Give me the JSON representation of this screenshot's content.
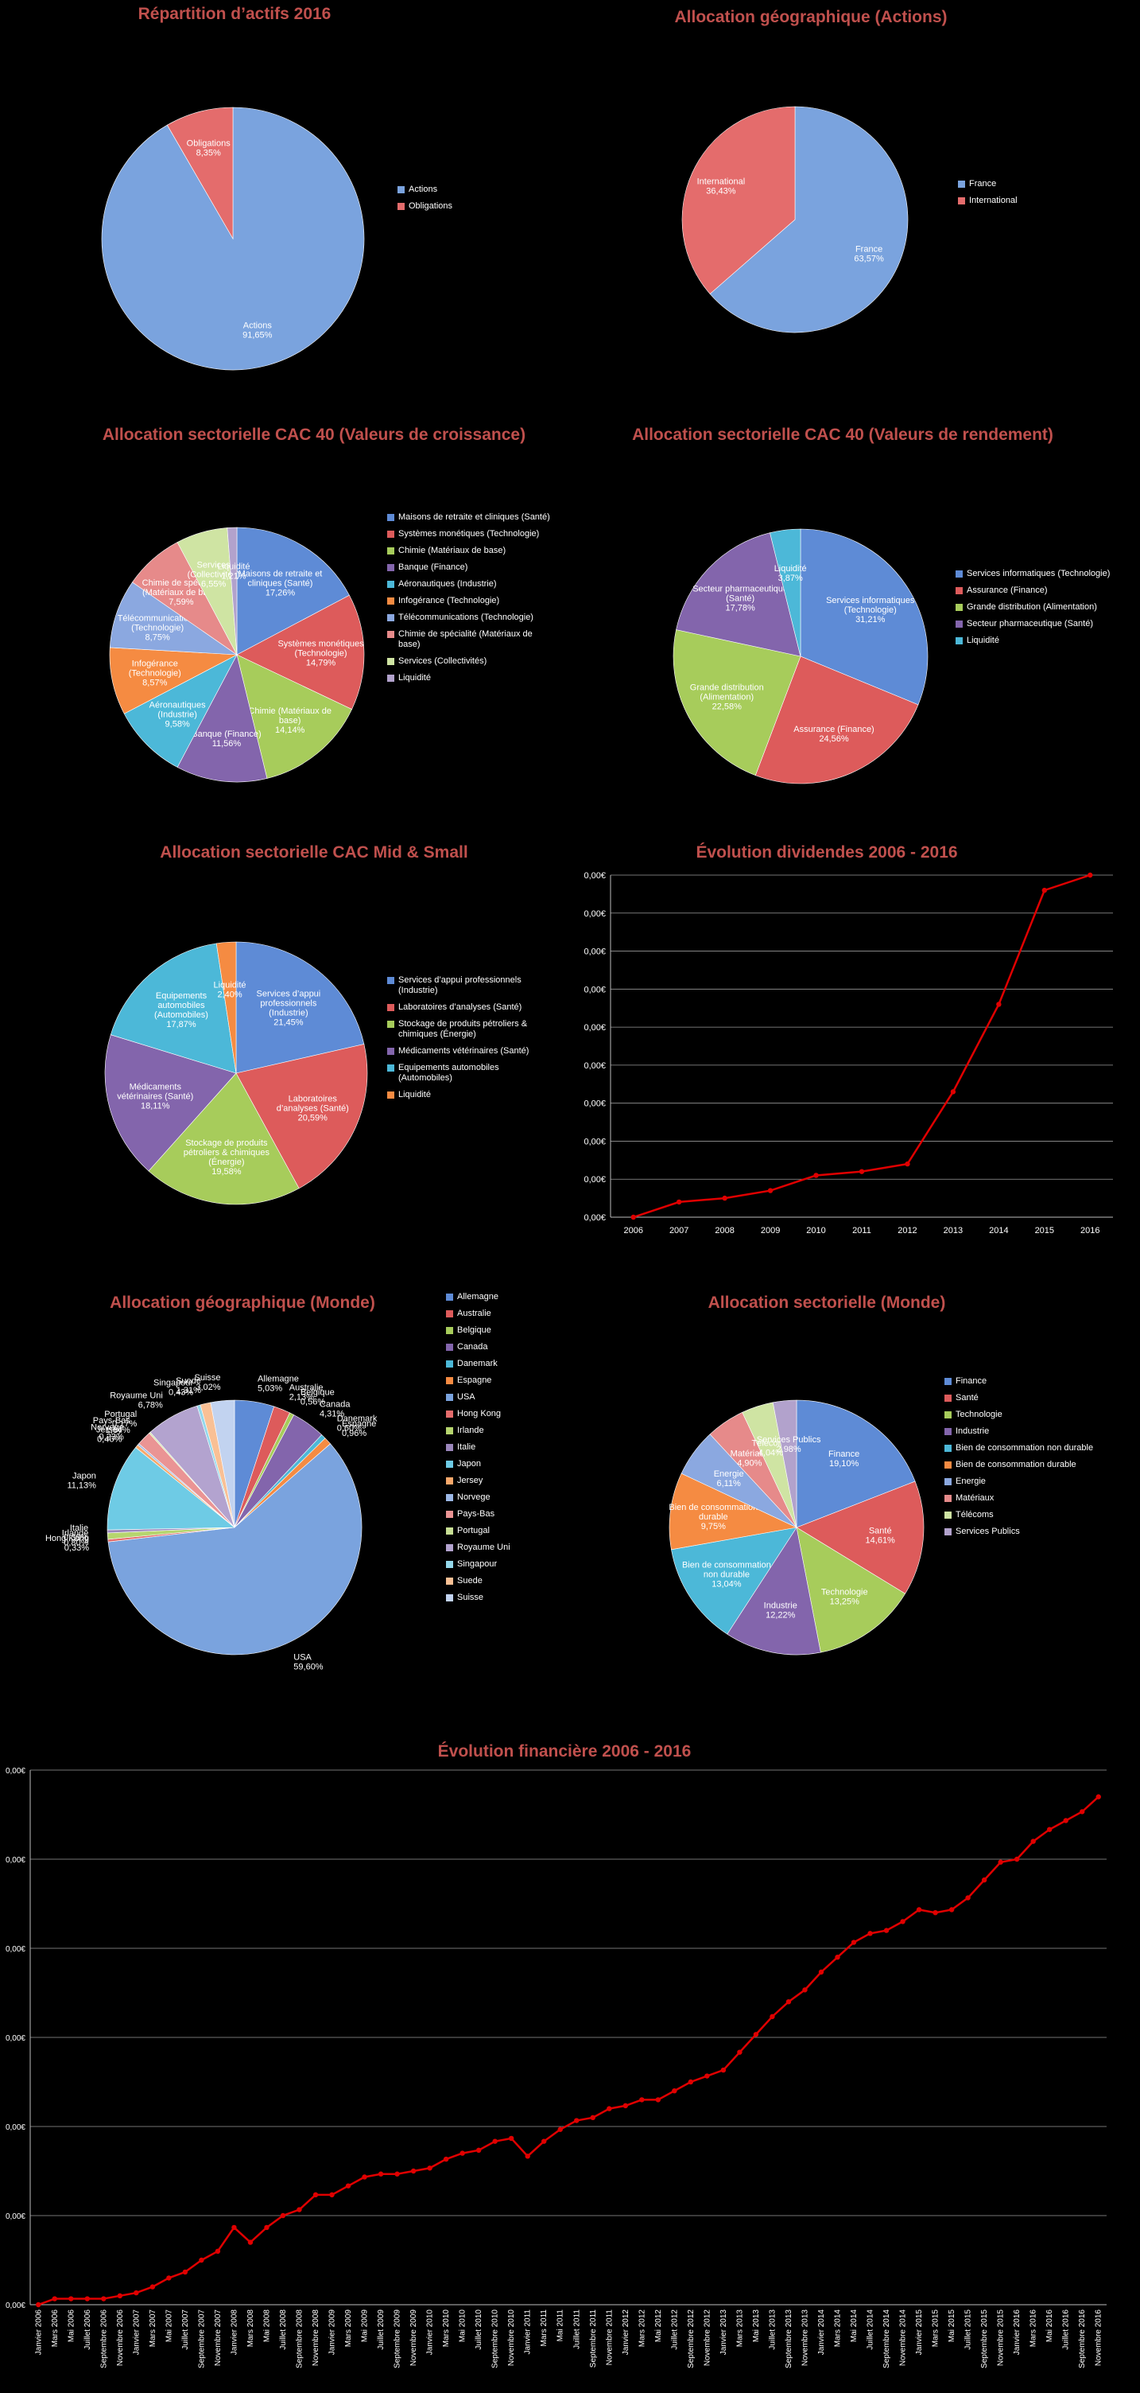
{
  "colors": {
    "title": "#c0504d",
    "blue": "#7aa3de",
    "red": "#e46c6c",
    "green": "#b6d56e",
    "purple": "#8f74b3",
    "cyan": "#5bc0de",
    "orange": "#f79646",
    "line": "#e00000"
  },
  "chart_data": [
    {
      "type": "pie",
      "title": "Répartition d’actifs 2016",
      "slices": [
        {
          "label": "Actions",
          "value": 91.65,
          "text": "91,65%",
          "color": "#7aa3de"
        },
        {
          "label": "Obligations",
          "value": 8.35,
          "text": "8,35%",
          "color": "#e46c6c"
        }
      ],
      "legend": [
        "Actions",
        "Obligations"
      ]
    },
    {
      "type": "pie",
      "title": "Allocation géographique (Actions)",
      "slices": [
        {
          "label": "France",
          "value": 63.57,
          "text": "63,57%",
          "color": "#7aa3de"
        },
        {
          "label": "International",
          "value": 36.43,
          "text": "36,43%",
          "color": "#e46c6c"
        }
      ],
      "legend": [
        "France",
        "International"
      ]
    },
    {
      "type": "pie",
      "title": "Allocation sectorielle CAC 40 (Valeurs de croissance)",
      "slices": [
        {
          "label": "Maisons de retraite et cliniques (Santé)",
          "value": 17.26,
          "text": "17,26%",
          "color": "#5e8bd6"
        },
        {
          "label": "Systèmes monétiques (Technologie)",
          "value": 14.79,
          "text": "14,79%",
          "color": "#dd5b5b"
        },
        {
          "label": "Chimie (Matériaux de base)",
          "value": 14.14,
          "text": "14,14%",
          "color": "#a7cc5b"
        },
        {
          "label": "Banque (Finance)",
          "value": 11.56,
          "text": "11,56%",
          "color": "#8365ac"
        },
        {
          "label": "Aéronautiques (Industrie)",
          "value": 9.58,
          "text": "9,58%",
          "color": "#4cb8d8"
        },
        {
          "label": "Infogérance (Technologie)",
          "value": 8.57,
          "text": "8,57%",
          "color": "#f58b42"
        },
        {
          "label": "Télécommunications (Technologie)",
          "value": 8.75,
          "text": "8,75%",
          "color": "#8ba8e0"
        },
        {
          "label": "Chimie de spécialité (Matériaux de base)",
          "value": 7.59,
          "text": "7,59%",
          "color": "#e68a8a"
        },
        {
          "label": "Services (Collectivités)",
          "value": 6.55,
          "text": "6,55%",
          "color": "#cfe4a3"
        },
        {
          "label": "Liquidité",
          "value": 1.21,
          "text": "1,21%",
          "color": "#b2a2cc"
        }
      ],
      "legend": [
        "Maisons de retraite et cliniques (Santé)",
        "Systèmes monétiques (Technologie)",
        "Chimie (Matériaux de base)",
        "Banque (Finance)",
        "Aéronautiques (Industrie)",
        "Infogérance (Technologie)",
        "Télécommunications (Technologie)",
        "Chimie de spécialité (Matériaux de base)",
        "Services (Collectivités)",
        "Liquidité"
      ]
    },
    {
      "type": "pie",
      "title": "Allocation sectorielle CAC 40 (Valeurs de rendement)",
      "slices": [
        {
          "label": "Services informatiques (Technologie)",
          "value": 31.21,
          "text": "31,21%",
          "color": "#5e8bd6"
        },
        {
          "label": "Assurance (Finance)",
          "value": 24.56,
          "text": "24,56%",
          "color": "#dd5b5b"
        },
        {
          "label": "Grande distribution (Alimentation)",
          "value": 22.58,
          "text": "22,58%",
          "color": "#a7cc5b"
        },
        {
          "label": "Secteur pharmaceutique (Santé)",
          "value": 17.78,
          "text": "17,78%",
          "color": "#8365ac"
        },
        {
          "label": "Liquidité",
          "value": 3.87,
          "text": "3,87%",
          "color": "#4cb8d8"
        }
      ],
      "legend": [
        "Services informatiques (Technologie)",
        "Assurance (Finance)",
        "Grande distribution (Alimentation)",
        "Secteur pharmaceutique (Santé)",
        "Liquidité"
      ]
    },
    {
      "type": "pie",
      "title": "Allocation sectorielle CAC Mid & Small",
      "slices": [
        {
          "label": "Services d’appui professionnels (Industrie)",
          "value": 21.45,
          "text": "21,45%",
          "color": "#5e8bd6"
        },
        {
          "label": "Laboratoires d’analyses (Santé)",
          "value": 20.59,
          "text": "20,59%",
          "color": "#dd5b5b"
        },
        {
          "label": "Stockage de produits pétroliers & chimiques (Énergie)",
          "value": 19.58,
          "text": "19,58%",
          "color": "#a7cc5b"
        },
        {
          "label": "Médicaments vétérinaires (Santé)",
          "value": 18.11,
          "text": "18,11%",
          "color": "#8365ac"
        },
        {
          "label": "Equipements automobiles (Automobiles)",
          "value": 17.87,
          "text": "17,87%",
          "color": "#4cb8d8"
        },
        {
          "label": "Liquidité",
          "value": 2.4,
          "text": "2,40%",
          "color": "#f58b42"
        }
      ],
      "legend": [
        "Services d’appui professionnels (Industrie)",
        "Laboratoires d’analyses (Santé)",
        "Stockage de produits pétroliers & chimiques (Énergie)",
        "Médicaments vétérinaires (Santé)",
        "Equipements automobiles (Automobiles)",
        "Liquidité"
      ]
    },
    {
      "type": "line",
      "title": "Évolution dividendes 2006 - 2016",
      "x": [
        "2006",
        "2007",
        "2008",
        "2009",
        "2010",
        "2011",
        "2012",
        "2013",
        "2014",
        "2015",
        "2016"
      ],
      "y": [
        0.0,
        0.4,
        0.5,
        0.7,
        1.1,
        1.2,
        1.4,
        3.3,
        5.6,
        8.6,
        9.0
      ],
      "ylim": [
        0,
        9
      ],
      "yticks": [
        "0,00€",
        "0,00€",
        "0,00€",
        "0,00€",
        "0,00€",
        "0,00€",
        "0,00€",
        "0,00€",
        "0,00€",
        "0,00€"
      ],
      "grid": true
    },
    {
      "type": "pie",
      "title": "Allocation géographique (Monde)",
      "slices": [
        {
          "label": "Allemagne",
          "value": 5.03,
          "text": "5,03%",
          "color": "#5e8bd6"
        },
        {
          "label": "Australie",
          "value": 2.13,
          "text": "2,13%",
          "color": "#dd5b5b"
        },
        {
          "label": "Belgique",
          "value": 0.56,
          "text": "0,56%",
          "color": "#a7cc5b"
        },
        {
          "label": "Canada",
          "value": 4.31,
          "text": "4,31%",
          "color": "#8365ac"
        },
        {
          "label": "Danemark",
          "value": 0.6,
          "text": "0,60%",
          "color": "#4cb8d8"
        },
        {
          "label": "Espagne",
          "value": 0.96,
          "text": "0,96%",
          "color": "#f58b42"
        },
        {
          "label": "USA",
          "value": 59.6,
          "text": "59,60%",
          "color": "#7aa3de"
        },
        {
          "label": "Hong Kong",
          "value": 0.33,
          "text": "0,33%",
          "color": "#e46c6c"
        },
        {
          "label": "Irlande",
          "value": 0.8,
          "text": "0,80%",
          "color": "#b6d56e"
        },
        {
          "label": "Italie",
          "value": 0.38,
          "text": "0,38%",
          "color": "#9b86bb"
        },
        {
          "label": "Japon",
          "value": 11.13,
          "text": "11,13%",
          "color": "#6ecbe5"
        },
        {
          "label": "Jersey",
          "value": 0.4,
          "text": "0,40%",
          "color": "#f7a86b"
        },
        {
          "label": "Norvege",
          "value": 0.23,
          "text": "0,23%",
          "color": "#9cb8e6"
        },
        {
          "label": "Pays-Bas",
          "value": 1.84,
          "text": "1,84%",
          "color": "#ea9494"
        },
        {
          "label": "Portugal",
          "value": 0.17,
          "text": "0,17%",
          "color": "#c8df95"
        },
        {
          "label": "Royaume Uni",
          "value": 6.78,
          "text": "6,78%",
          "color": "#b3a3cf"
        },
        {
          "label": "Singapour",
          "value": 0.43,
          "text": "0,43%",
          "color": "#94d8eb"
        },
        {
          "label": "Suede",
          "value": 1.31,
          "text": "1,31%",
          "color": "#f9c095"
        },
        {
          "label": "Suisse",
          "value": 3.02,
          "text": "3,02%",
          "color": "#c2d3f0"
        }
      ],
      "legend": [
        "Allemagne",
        "Australie",
        "Belgique",
        "Canada",
        "Danemark",
        "Espagne",
        "USA",
        "Hong Kong",
        "Irlande",
        "Italie",
        "Japon",
        "Jersey",
        "Norvege",
        "Pays-Bas",
        "Portugal",
        "Royaume Uni",
        "Singapour",
        "Suede",
        "Suisse"
      ]
    },
    {
      "type": "pie",
      "title": "Allocation sectorielle (Monde)",
      "slices": [
        {
          "label": "Finance",
          "value": 19.1,
          "text": "19,10%",
          "color": "#5e8bd6"
        },
        {
          "label": "Santé",
          "value": 14.61,
          "text": "14,61%",
          "color": "#dd5b5b"
        },
        {
          "label": "Technologie",
          "value": 13.25,
          "text": "13,25%",
          "color": "#a7cc5b"
        },
        {
          "label": "Industrie",
          "value": 12.22,
          "text": "12,22%",
          "color": "#8365ac"
        },
        {
          "label": "Bien de consommation non durable",
          "value": 13.04,
          "text": "13,04%",
          "color": "#4cb8d8"
        },
        {
          "label": "Bien de consommation durable",
          "value": 9.75,
          "text": "9,75%",
          "color": "#f58b42"
        },
        {
          "label": "Energie",
          "value": 6.11,
          "text": "6,11%",
          "color": "#8ba8e0"
        },
        {
          "label": "Matériaux",
          "value": 4.9,
          "text": "4,90%",
          "color": "#e68a8a"
        },
        {
          "label": "Télécoms",
          "value": 4.04,
          "text": "4,04%",
          "color": "#cfe4a3"
        },
        {
          "label": "Services Publics",
          "value": 2.98,
          "text": "2,98%",
          "color": "#b2a2cc"
        }
      ],
      "legend": [
        "Finance",
        "Santé",
        "Technologie",
        "Industrie",
        "Bien de consommation non durable",
        "Bien de consommation durable",
        "Energie",
        "Matériaux",
        "Télécoms",
        "Services Publics"
      ]
    },
    {
      "type": "line",
      "title": "Évolution financière 2006 - 2016",
      "x": [
        "Janvier 2006",
        "Mars 2006",
        "Mai 2006",
        "Juillet 2006",
        "Septembre 2006",
        "Novembre 2006",
        "Janvier 2007",
        "Mars 2007",
        "Mai 2007",
        "Juillet 2007",
        "Septembre 2007",
        "Novembre 2007",
        "Janvier 2008",
        "Mars 2008",
        "Mai 2008",
        "Juillet 2008",
        "Septembre 2008",
        "Novembre 2008",
        "Janvier 2009",
        "Mars 2009",
        "Mai 2009",
        "Juillet 2009",
        "Septembre 2009",
        "Novembre 2009",
        "Janvier 2010",
        "Mars 2010",
        "Mai 2010",
        "Juillet 2010",
        "Septembre 2010",
        "Novembre 2010",
        "Janvier 2011",
        "Mars 2011",
        "Mai 2011",
        "Juillet 2011",
        "Septembre 2011",
        "Novembre 2011",
        "Janvier 2012",
        "Mars 2012",
        "Mai 2012",
        "Juillet 2012",
        "Septembre 2012",
        "Novembre 2012",
        "Janvier 2013",
        "Mars 2013",
        "Mai 2013",
        "Juillet 2013",
        "Septembre 2013",
        "Novembre 2013",
        "Janvier 2014",
        "Mars 2014",
        "Mai 2014",
        "Juillet 2014",
        "Septembre 2014",
        "Novembre 2014",
        "Janvier 2015",
        "Mars 2015",
        "Mai 2015",
        "Juillet 2015",
        "Septembre 2015",
        "Novembre 2015",
        "Janvier 2016",
        "Mars 2016",
        "Mai 2016",
        "Juillet 2016",
        "Septembre 2016",
        "Novembre 2016"
      ],
      "y": [
        0.0,
        0.1,
        0.1,
        0.1,
        0.1,
        0.15,
        0.2,
        0.3,
        0.45,
        0.55,
        0.75,
        0.9,
        1.3,
        1.05,
        1.3,
        1.5,
        1.6,
        1.85,
        1.85,
        2.0,
        2.15,
        2.2,
        2.2,
        2.25,
        2.3,
        2.45,
        2.55,
        2.6,
        2.75,
        2.8,
        2.5,
        2.75,
        2.95,
        3.1,
        3.15,
        3.3,
        3.35,
        3.45,
        3.45,
        3.6,
        3.75,
        3.85,
        3.95,
        4.25,
        4.55,
        4.85,
        5.1,
        5.3,
        5.6,
        5.85,
        6.1,
        6.25,
        6.3,
        6.45,
        6.65,
        6.6,
        6.65,
        6.85,
        7.15,
        7.45,
        7.5,
        7.8,
        8.0,
        8.15,
        8.3,
        8.55
      ],
      "ylim": [
        0,
        9
      ],
      "yticks": [
        "0,00€",
        "0,00€",
        "0,00€",
        "0,00€",
        "0,00€",
        "0,00€",
        "0,00€"
      ],
      "grid": true
    }
  ]
}
